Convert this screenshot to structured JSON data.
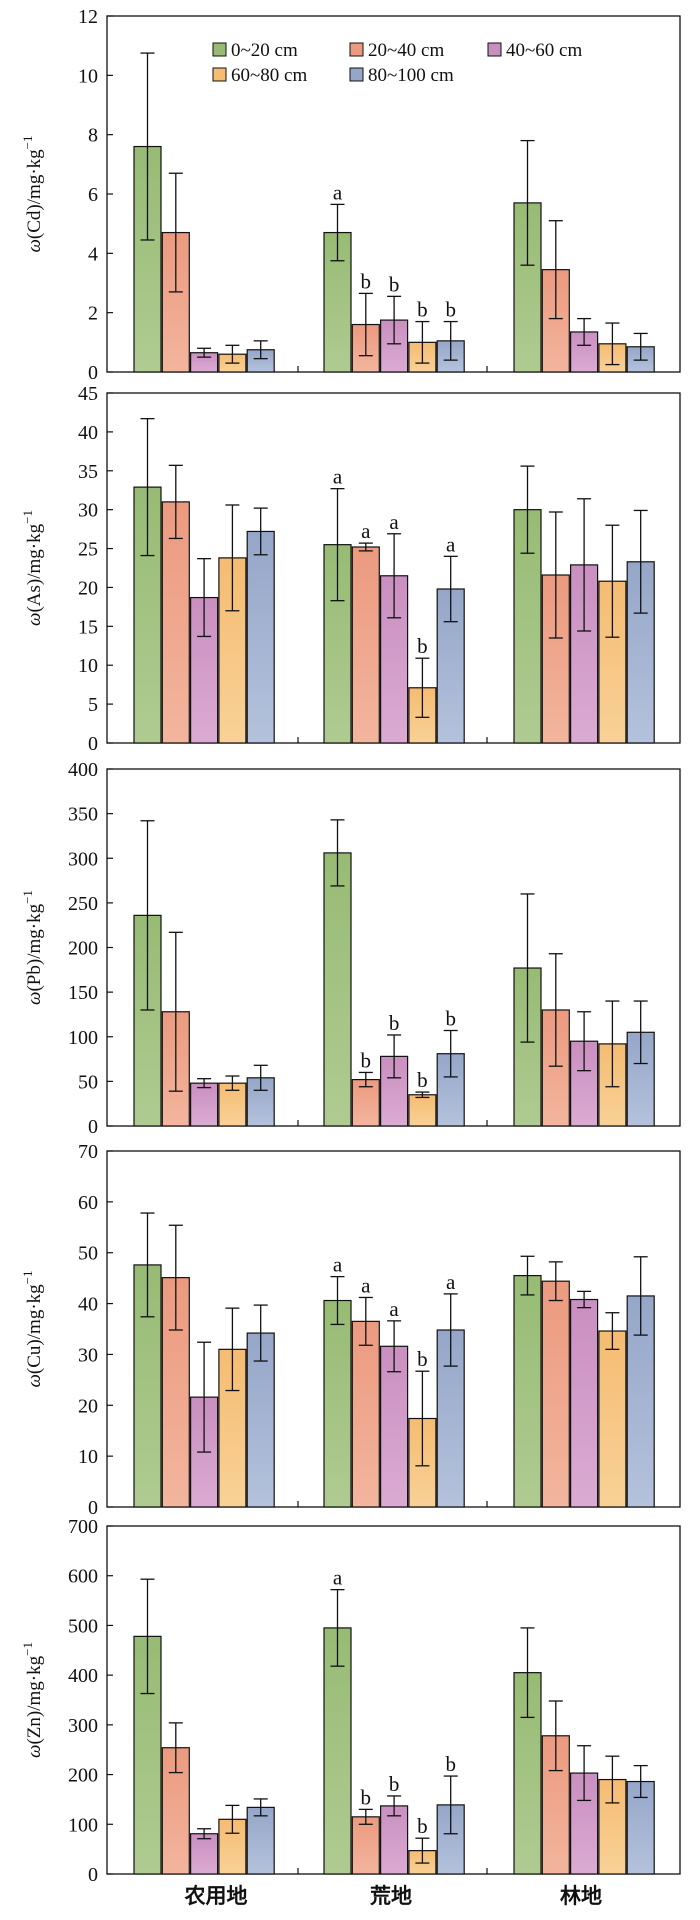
{
  "chart_data": [
    {
      "type": "bar",
      "categories": [
        "农用地",
        "荒地",
        "林地"
      ],
      "ylabel": "ω(Cd)/mg·kg⁻¹",
      "ylabel_element": "Cd",
      "ylim": [
        0,
        12
      ],
      "yticks": [
        0,
        2,
        4,
        6,
        8,
        10,
        12
      ],
      "legend": {
        "placement": "top",
        "entries": [
          "0~20 cm",
          "20~40 cm",
          "40~60 cm",
          "60~80 cm",
          "80~100 cm"
        ]
      },
      "series": [
        {
          "name": "0~20 cm",
          "values": [
            7.6,
            4.7,
            5.7
          ],
          "errors": [
            3.15,
            0.95,
            2.1
          ],
          "labels": [
            "",
            "a",
            ""
          ]
        },
        {
          "name": "20~40 cm",
          "values": [
            4.7,
            1.6,
            3.45
          ],
          "errors": [
            2.0,
            1.05,
            1.65
          ],
          "labels": [
            "",
            "b",
            ""
          ]
        },
        {
          "name": "40~60 cm",
          "values": [
            0.65,
            1.75,
            1.35
          ],
          "errors": [
            0.15,
            0.8,
            0.45
          ],
          "labels": [
            "",
            "b",
            ""
          ]
        },
        {
          "name": "60~80 cm",
          "values": [
            0.6,
            1.0,
            0.95
          ],
          "errors": [
            0.3,
            0.7,
            0.7
          ],
          "labels": [
            "",
            "b",
            ""
          ]
        },
        {
          "name": "80~100 cm",
          "values": [
            0.75,
            1.05,
            0.85
          ],
          "errors": [
            0.3,
            0.65,
            0.45
          ],
          "labels": [
            "",
            "b",
            ""
          ]
        }
      ]
    },
    {
      "type": "bar",
      "categories": [
        "农用地",
        "荒地",
        "林地"
      ],
      "ylabel": "ω(As)/mg·kg⁻¹",
      "ylabel_element": "As",
      "ylim": [
        0,
        45
      ],
      "yticks": [
        0,
        5,
        10,
        15,
        20,
        25,
        30,
        35,
        40,
        45
      ],
      "series": [
        {
          "name": "0~20 cm",
          "values": [
            32.9,
            25.5,
            30.0
          ],
          "errors": [
            8.8,
            7.2,
            5.6
          ],
          "labels": [
            "",
            "a",
            ""
          ]
        },
        {
          "name": "20~40 cm",
          "values": [
            31.0,
            25.2,
            21.6
          ],
          "errors": [
            4.7,
            0.5,
            8.1
          ],
          "labels": [
            "",
            "a",
            ""
          ]
        },
        {
          "name": "40~60 cm",
          "values": [
            18.7,
            21.5,
            22.9
          ],
          "errors": [
            5.0,
            5.4,
            8.5
          ],
          "labels": [
            "",
            "a",
            ""
          ]
        },
        {
          "name": "60~80 cm",
          "values": [
            23.8,
            7.1,
            20.8
          ],
          "errors": [
            6.8,
            3.8,
            7.2
          ],
          "labels": [
            "",
            "b",
            ""
          ]
        },
        {
          "name": "80~100 cm",
          "values": [
            27.2,
            19.8,
            23.3
          ],
          "errors": [
            3.0,
            4.2,
            6.6
          ],
          "labels": [
            "",
            "a",
            ""
          ]
        }
      ]
    },
    {
      "type": "bar",
      "categories": [
        "农用地",
        "荒地",
        "林地"
      ],
      "ylabel": "ω(Pb)/mg·kg⁻¹",
      "ylabel_element": "Pb",
      "ylim": [
        0,
        400
      ],
      "yticks": [
        0,
        50,
        100,
        150,
        200,
        250,
        300,
        350,
        400
      ],
      "series": [
        {
          "name": "0~20 cm",
          "values": [
            236,
            306,
            177
          ],
          "errors": [
            106,
            37,
            83
          ],
          "labels": [
            "",
            "",
            ""
          ]
        },
        {
          "name": "20~40 cm",
          "values": [
            128,
            52,
            130
          ],
          "errors": [
            89,
            8,
            63
          ],
          "labels": [
            "",
            "b",
            ""
          ]
        },
        {
          "name": "40~60 cm",
          "values": [
            48,
            78,
            95
          ],
          "errors": [
            5,
            24,
            33
          ],
          "labels": [
            "",
            "b",
            ""
          ]
        },
        {
          "name": "60~80 cm",
          "values": [
            48,
            35,
            92
          ],
          "errors": [
            8,
            3,
            48
          ],
          "labels": [
            "",
            "b",
            ""
          ]
        },
        {
          "name": "80~100 cm",
          "values": [
            54,
            81,
            105
          ],
          "errors": [
            14,
            26,
            35
          ],
          "labels": [
            "",
            "b",
            ""
          ]
        }
      ]
    },
    {
      "type": "bar",
      "categories": [
        "农用地",
        "荒地",
        "林地"
      ],
      "ylabel": "ω(Cu)/mg·kg⁻¹",
      "ylabel_element": "Cu",
      "ylim": [
        0,
        70
      ],
      "yticks": [
        0,
        10,
        20,
        30,
        40,
        50,
        60,
        70
      ],
      "series": [
        {
          "name": "0~20 cm",
          "values": [
            47.6,
            40.6,
            45.5
          ],
          "errors": [
            10.2,
            4.7,
            3.8
          ],
          "labels": [
            "",
            "a",
            ""
          ]
        },
        {
          "name": "20~40 cm",
          "values": [
            45.1,
            36.5,
            44.4
          ],
          "errors": [
            10.3,
            4.7,
            3.8
          ],
          "labels": [
            "",
            "a",
            ""
          ]
        },
        {
          "name": "40~60 cm",
          "values": [
            21.6,
            31.6,
            40.8
          ],
          "errors": [
            10.8,
            5.0,
            1.6
          ],
          "labels": [
            "",
            "a",
            ""
          ]
        },
        {
          "name": "60~80 cm",
          "values": [
            31.0,
            17.4,
            34.6
          ],
          "errors": [
            8.1,
            9.3,
            3.6
          ],
          "labels": [
            "",
            "b",
            ""
          ]
        },
        {
          "name": "80~100 cm",
          "values": [
            34.2,
            34.8,
            41.5
          ],
          "errors": [
            5.5,
            7.1,
            7.7
          ],
          "labels": [
            "",
            "a",
            ""
          ]
        }
      ]
    },
    {
      "type": "bar",
      "categories": [
        "农用地",
        "荒地",
        "林地"
      ],
      "ylabel": "ω(Zn)/mg·kg⁻¹",
      "ylabel_element": "Zn",
      "ylim": [
        0,
        700
      ],
      "yticks": [
        0,
        100,
        200,
        300,
        400,
        500,
        600,
        700
      ],
      "series": [
        {
          "name": "0~20 cm",
          "values": [
            478,
            495,
            405
          ],
          "errors": [
            115,
            77,
            90
          ],
          "labels": [
            "",
            "a",
            ""
          ]
        },
        {
          "name": "20~40 cm",
          "values": [
            254,
            115,
            278
          ],
          "errors": [
            50,
            15,
            70
          ],
          "labels": [
            "",
            "b",
            ""
          ]
        },
        {
          "name": "40~60 cm",
          "values": [
            81,
            137,
            203
          ],
          "errors": [
            10,
            20,
            55
          ],
          "labels": [
            "",
            "b",
            ""
          ]
        },
        {
          "name": "60~80 cm",
          "values": [
            110,
            47,
            190
          ],
          "errors": [
            28,
            25,
            47
          ],
          "labels": [
            "",
            "b",
            ""
          ]
        },
        {
          "name": "80~100 cm",
          "values": [
            134,
            139,
            186
          ],
          "errors": [
            17,
            58,
            32
          ],
          "labels": [
            "",
            "b",
            ""
          ]
        }
      ]
    }
  ],
  "colors": {
    "series": [
      "#97bb74",
      "#eb9a7f",
      "#c98fc0",
      "#f5bc72",
      "#95a6c8"
    ],
    "series_light": [
      "#afcb92",
      "#f3b59e",
      "#dbabd3",
      "#f9d197",
      "#b4c2dc"
    ],
    "axis": "#111111"
  }
}
